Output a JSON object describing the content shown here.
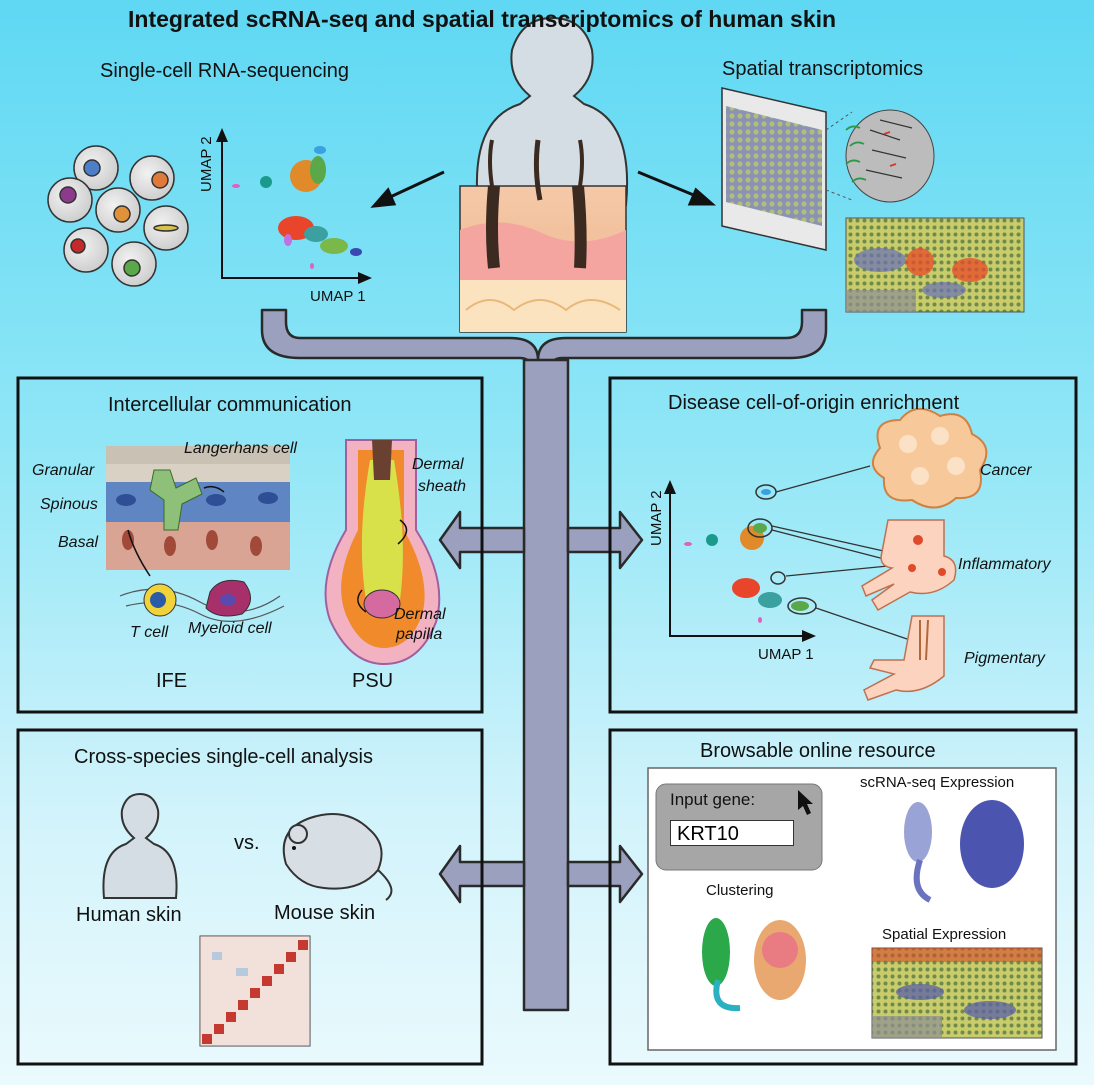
{
  "title": "Integrated scRNA-seq and spatial transcriptomics of human skin",
  "top": {
    "scrna": "Single-cell RNA-sequencing",
    "spatial": "Spatial transcriptomics",
    "umap1": "UMAP 1",
    "umap2": "UMAP 2"
  },
  "panels": {
    "intercellular": {
      "title": "Intercellular communication",
      "granular": "Granular",
      "spinous": "Spinous",
      "basal": "Basal",
      "langerhans": "Langerhans cell",
      "tcell": "T cell",
      "myeloid": "Myeloid cell",
      "dermal_sheath_1": "Dermal",
      "dermal_sheath_2": "sheath",
      "dermal_papilla_1": "Dermal",
      "dermal_papilla_2": "papilla",
      "ife": "IFE",
      "psu": "PSU"
    },
    "disease": {
      "title": "Disease cell-of-origin enrichment",
      "umap1": "UMAP 1",
      "umap2": "UMAP 2",
      "cancer": "Cancer",
      "inflammatory": "Inflammatory",
      "pigmentary": "Pigmentary"
    },
    "cross_species": {
      "title": "Cross-species single-cell analysis",
      "vs": "vs.",
      "human": "Human skin",
      "mouse": "Mouse skin"
    },
    "browsable": {
      "title": "Browsable online resource",
      "input_label": "Input gene:",
      "input_value": "KRT10",
      "scrna_expr": "scRNA-seq Expression",
      "clustering": "Clustering",
      "spatial_expr": "Spatial Expression"
    }
  }
}
